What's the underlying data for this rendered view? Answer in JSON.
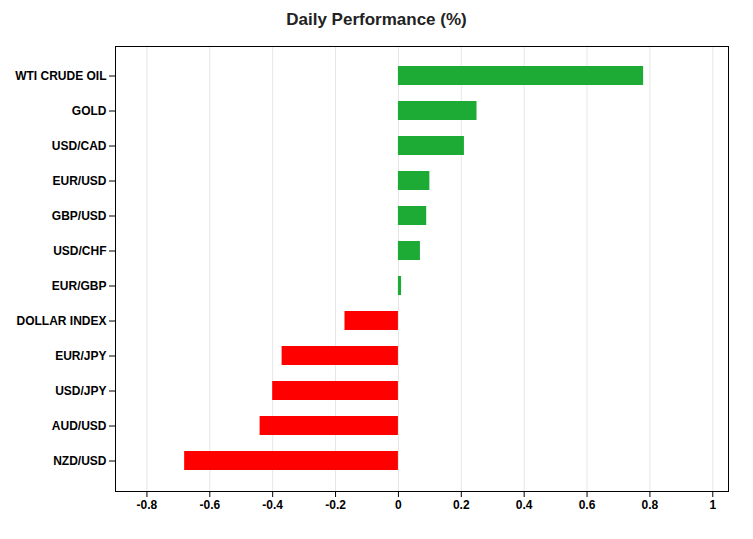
{
  "chart_data": {
    "type": "bar",
    "orientation": "horizontal",
    "title": "Daily Performance (%)",
    "categories": [
      "WTI CRUDE OIL",
      "GOLD",
      "USD/CAD",
      "EUR/USD",
      "GBP/USD",
      "USD/CHF",
      "EUR/GBP",
      "DOLLAR INDEX",
      "EUR/JPY",
      "USD/JPY",
      "AUD/USD",
      "NZD/USD"
    ],
    "values": [
      0.78,
      0.25,
      0.21,
      0.1,
      0.09,
      0.07,
      0.01,
      -0.17,
      -0.37,
      -0.4,
      -0.44,
      -0.68
    ],
    "colors": [
      "#1daa35",
      "#1daa35",
      "#1daa35",
      "#1daa35",
      "#1daa35",
      "#1daa35",
      "#1daa35",
      "#ff0000",
      "#ff0000",
      "#ff0000",
      "#ff0000",
      "#ff0000"
    ],
    "xlim": [
      -0.9,
      1.05
    ],
    "xticks": [
      -0.8,
      -0.6,
      -0.4,
      -0.2,
      0,
      0.2,
      0.4,
      0.6,
      0.8,
      1
    ],
    "grid": true
  }
}
